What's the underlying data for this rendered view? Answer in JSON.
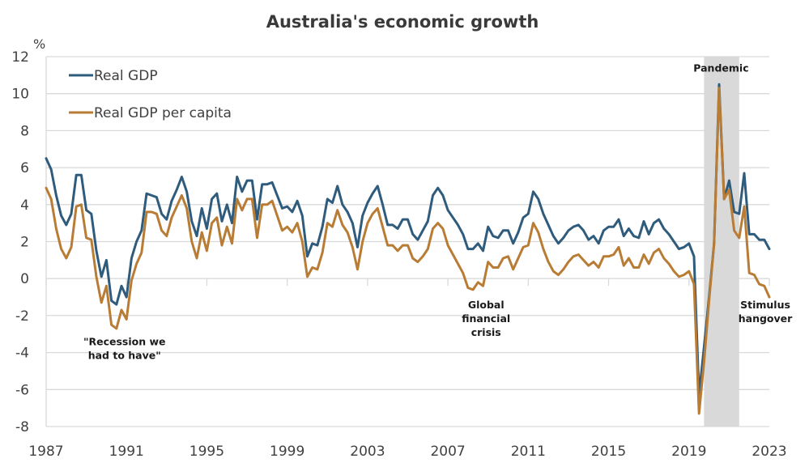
{
  "chart_data": {
    "type": "line",
    "title": "Australia's economic growth",
    "ylabel": "%",
    "xlabel": "",
    "ylim": [
      -8,
      12
    ],
    "yticks": [
      12,
      10,
      8,
      6,
      4,
      2,
      0,
      -2,
      -4,
      -6,
      -8
    ],
    "xlim": [
      1987.0,
      2023.0
    ],
    "xticks": [
      1987,
      1991,
      1995,
      1999,
      2003,
      2007,
      2011,
      2015,
      2019,
      2023
    ],
    "grid": true,
    "legend_position": "top-left",
    "frequency": "quarterly",
    "x_start": 1987.0,
    "x_step": 0.25,
    "shaded_periods": [
      {
        "label": "Pandemic",
        "start": 2019.75,
        "end": 2021.5,
        "color": "#d9d9d9"
      }
    ],
    "annotations": [
      {
        "id": "recession",
        "lines": [
          "\"Recession we",
          "had to have\""
        ],
        "x": 1990.9,
        "y": -3.6
      },
      {
        "id": "gfc",
        "lines": [
          "Global",
          "financial",
          "crisis"
        ],
        "x": 2008.9,
        "y": -1.6
      },
      {
        "id": "pandemic",
        "lines": [
          "Pandemic"
        ],
        "x": 2020.6,
        "y": 11.2
      },
      {
        "id": "stimulus",
        "lines": [
          "Stimulus",
          "hangover"
        ],
        "x": 2022.8,
        "y": -1.6
      }
    ],
    "series": [
      {
        "name": "Real GDP",
        "color": "#2f5b7c",
        "values": [
          6.5,
          5.9,
          4.5,
          3.4,
          2.9,
          3.5,
          5.6,
          5.6,
          3.7,
          3.5,
          1.5,
          0.1,
          1.0,
          -1.2,
          -1.4,
          -0.4,
          -1.0,
          1.1,
          2.0,
          2.6,
          4.6,
          4.5,
          4.4,
          3.5,
          3.2,
          4.2,
          4.8,
          5.5,
          4.7,
          3.1,
          2.3,
          3.8,
          2.7,
          4.3,
          4.6,
          3.1,
          4.0,
          3.0,
          5.5,
          4.7,
          5.3,
          5.3,
          3.2,
          5.1,
          5.1,
          5.2,
          4.5,
          3.8,
          3.9,
          3.6,
          4.2,
          3.4,
          1.2,
          1.9,
          1.8,
          2.8,
          4.3,
          4.1,
          5.0,
          4.0,
          3.6,
          3.0,
          1.7,
          3.4,
          4.1,
          4.6,
          5.0,
          4.0,
          2.9,
          2.9,
          2.7,
          3.2,
          3.2,
          2.4,
          2.1,
          2.6,
          3.1,
          4.5,
          4.9,
          4.5,
          3.7,
          3.3,
          2.9,
          2.4,
          1.6,
          1.6,
          1.9,
          1.5,
          2.8,
          2.3,
          2.2,
          2.6,
          2.6,
          1.9,
          2.5,
          3.3,
          3.5,
          4.7,
          4.3,
          3.5,
          2.9,
          2.3,
          1.9,
          2.2,
          2.6,
          2.8,
          2.9,
          2.6,
          2.1,
          2.3,
          1.9,
          2.6,
          2.8,
          2.8,
          3.2,
          2.3,
          2.7,
          2.3,
          2.2,
          3.1,
          2.4,
          3.0,
          3.2,
          2.7,
          2.4,
          2.0,
          1.6,
          1.7,
          1.9,
          1.2,
          -6.3,
          -3.7,
          -1.0,
          1.9,
          10.5,
          4.3,
          5.3,
          3.6,
          3.5,
          5.7,
          2.4,
          2.4,
          2.1,
          2.1,
          1.6
        ]
      },
      {
        "name": "Real GDP per capita",
        "color": "#b87c35",
        "values": [
          4.9,
          4.3,
          2.7,
          1.6,
          1.1,
          1.7,
          3.9,
          4.0,
          2.2,
          2.1,
          0.1,
          -1.3,
          -0.4,
          -2.5,
          -2.7,
          -1.7,
          -2.2,
          -0.1,
          0.8,
          1.4,
          3.6,
          3.6,
          3.5,
          2.6,
          2.3,
          3.3,
          3.9,
          4.5,
          3.8,
          2.0,
          1.1,
          2.5,
          1.5,
          3.0,
          3.3,
          1.8,
          2.8,
          1.9,
          4.3,
          3.7,
          4.3,
          4.3,
          2.2,
          4.0,
          4.0,
          4.2,
          3.4,
          2.6,
          2.8,
          2.5,
          3.0,
          2.0,
          0.1,
          0.6,
          0.5,
          1.4,
          3.0,
          2.8,
          3.7,
          2.9,
          2.5,
          1.7,
          0.5,
          2.0,
          3.0,
          3.5,
          3.8,
          2.8,
          1.8,
          1.8,
          1.5,
          1.8,
          1.8,
          1.1,
          0.9,
          1.2,
          1.6,
          2.7,
          3.0,
          2.7,
          1.8,
          1.3,
          0.8,
          0.3,
          -0.5,
          -0.6,
          -0.2,
          -0.4,
          0.9,
          0.6,
          0.6,
          1.1,
          1.2,
          0.5,
          1.1,
          1.7,
          1.8,
          3.0,
          2.5,
          1.6,
          0.9,
          0.4,
          0.2,
          0.5,
          0.9,
          1.2,
          1.3,
          1.0,
          0.7,
          0.9,
          0.6,
          1.2,
          1.2,
          1.3,
          1.7,
          0.7,
          1.1,
          0.6,
          0.6,
          1.3,
          0.8,
          1.4,
          1.6,
          1.1,
          0.8,
          0.4,
          0.1,
          0.2,
          0.4,
          -0.3,
          -7.3,
          -4.5,
          -1.2,
          1.9,
          10.3,
          4.3,
          4.8,
          2.6,
          2.2,
          3.9,
          0.3,
          0.2,
          -0.3,
          -0.4,
          -1.0
        ]
      }
    ]
  }
}
